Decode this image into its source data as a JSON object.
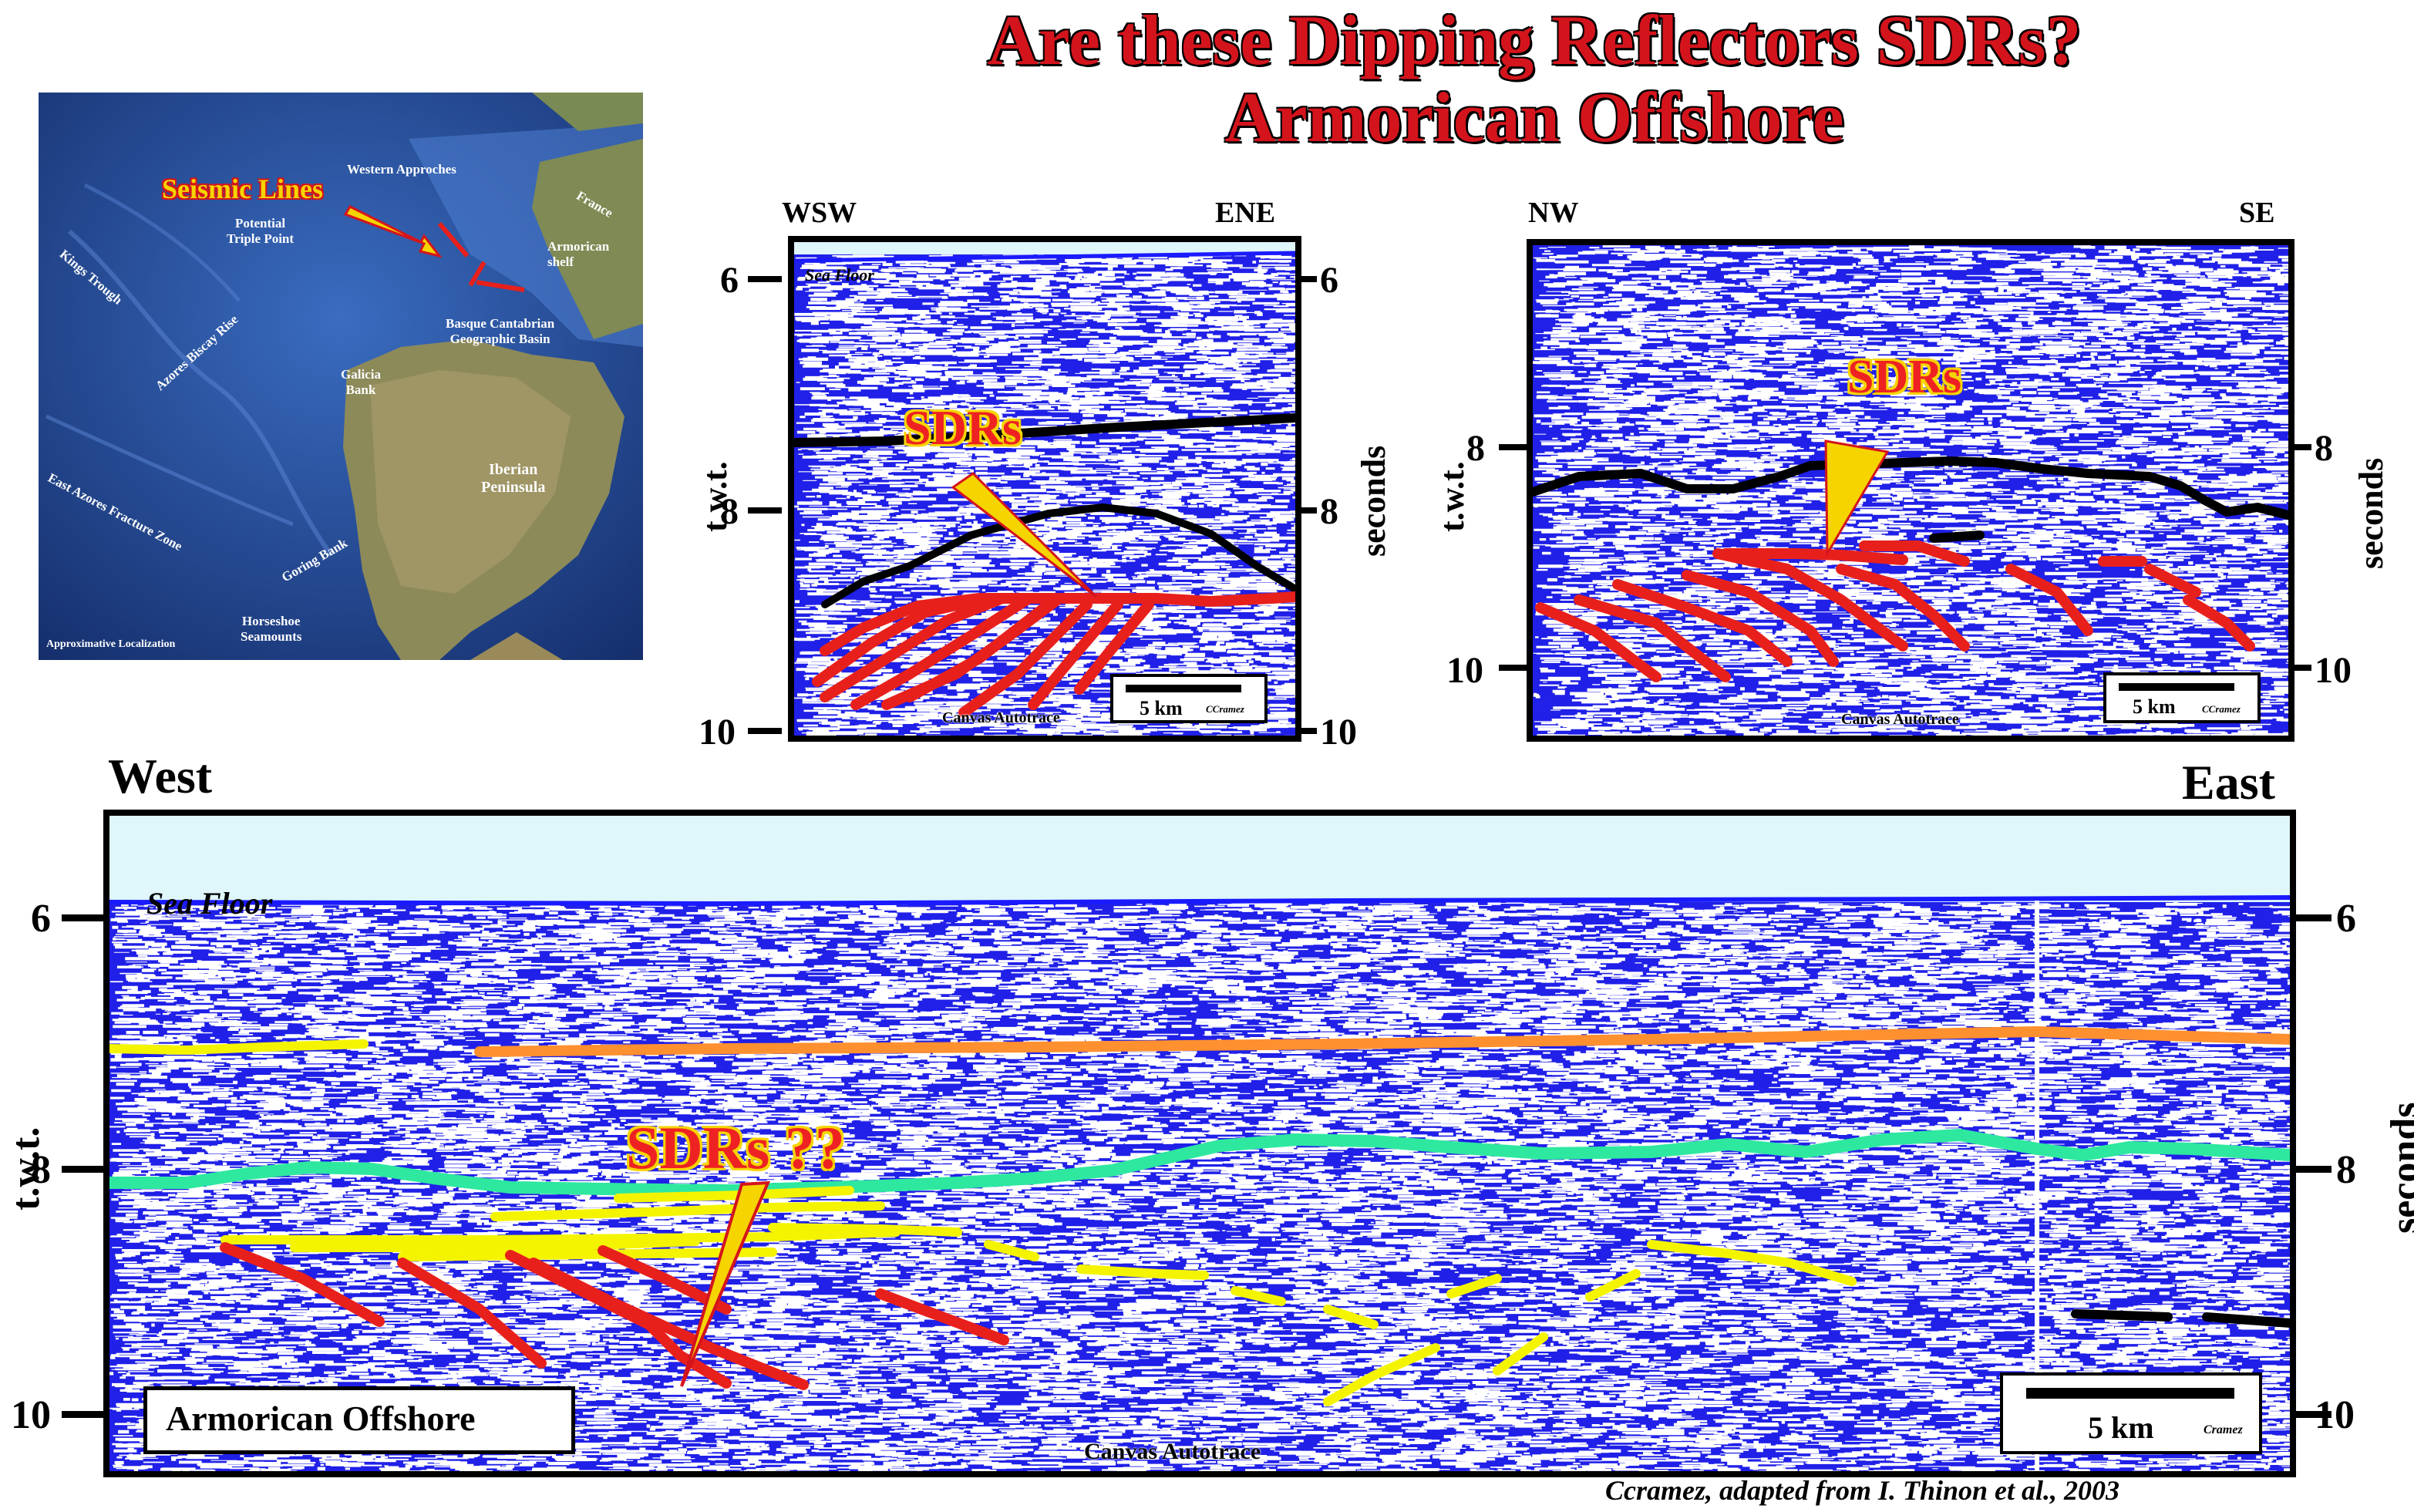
{
  "title": {
    "line1": "Are these Dipping Reflectors SDRs?",
    "line2": "Armorican Offshore"
  },
  "map": {
    "callout": "Seismic Lines",
    "labels": {
      "western_approches": "Western Approches",
      "france": "France",
      "potential_triple_point": "Potential\nTriple Point",
      "armorican_shelf": "Armorican\nshelf",
      "kings_trough": "Kings Trough",
      "azores_biscay_rise": "Azores Biscay Rise",
      "basque_cantabrian": "Basque Cantabrian\nGeographic Basin",
      "galicia_bank": "Galicia\nBank",
      "iberian_peninsula": "Iberian\nPeninsula",
      "east_azores": "East Azores Fracture Zone",
      "goring_bank": "Goring Bank",
      "horseshoe_seamounts": "Horseshoe\nSeamounts",
      "approx_localization": "Approximative Localization"
    },
    "colors": {
      "line": "#e8201c",
      "arrow": "#f6d400"
    }
  },
  "panel_upper_left": {
    "dir_left": "WSW",
    "dir_right": "ENE",
    "sea_floor": "Sea Floor",
    "sdr_label": "SDRs",
    "ticks_left": [
      "6",
      "8",
      "10"
    ],
    "ticks_right": [
      "6",
      "8",
      "10"
    ],
    "y_label_left": "t.w.t.",
    "y_label_right": "seconds",
    "scale": "5 km",
    "scale_credit": "CCramez",
    "autotrace": "Canvas Autotrace"
  },
  "panel_upper_right": {
    "dir_left": "NW",
    "dir_right": "SE",
    "sdr_label": "SDRs",
    "ticks_left": [
      "8",
      "10"
    ],
    "ticks_right": [
      "8",
      "10"
    ],
    "y_label_left": "t.w.t.",
    "y_label_right": "seconds",
    "scale": "5 km",
    "scale_credit": "CCramez",
    "autotrace": "Canvas Autotrace"
  },
  "panel_bottom": {
    "dir_left": "West",
    "dir_right": "East",
    "sea_floor": "Sea Floor",
    "sdr_label": "SDRs ??",
    "ticks_left": [
      "6",
      "8",
      "10"
    ],
    "ticks_right": [
      "6",
      "8",
      "10"
    ],
    "y_label_left": "t.w.t.",
    "y_label_right": "seconds",
    "name_box": "Armorican Offshore",
    "scale": "5 km",
    "scale_credit": "Cramez",
    "autotrace": "Canvas Autotrace"
  },
  "credit": "Ccramez,  adapted from  I. Thinon et al., 2003",
  "colors": {
    "seismic_blue": "#2020e8",
    "water": "#dff6fb",
    "sdr_red": "#e8201c",
    "horizon_black": "#000000",
    "horizon_yellow": "#f4f400",
    "horizon_orange": "#ff9030",
    "horizon_green": "#2ee8a0",
    "title_red": "#d4141c"
  }
}
